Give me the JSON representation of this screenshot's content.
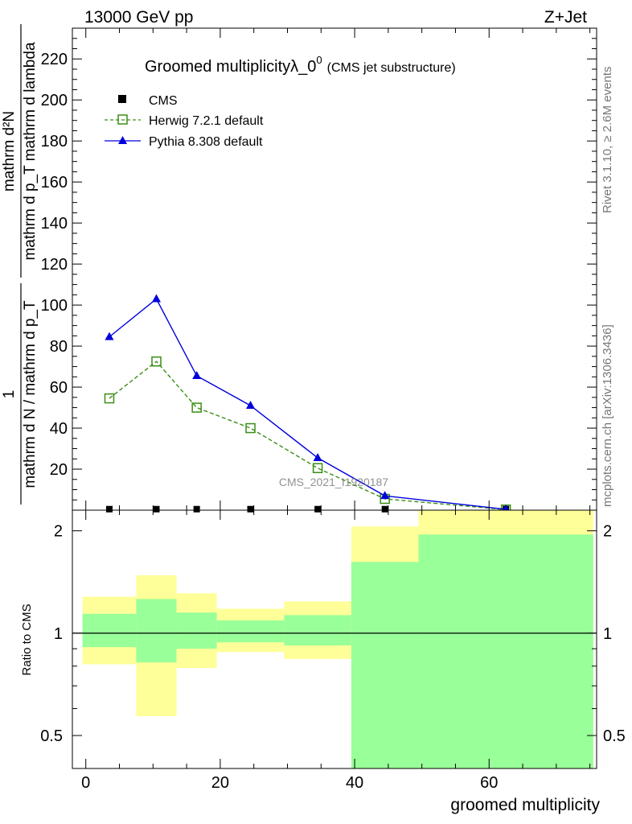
{
  "header": {
    "energy": "13000 GeV pp",
    "process": "Z+Jet"
  },
  "side_labels": {
    "rivet": "Rivet 3.1.10, ≥ 2.6M events",
    "mcplots": "mcplots.cern.ch [arXiv:1306.3436]"
  },
  "watermark": "CMS_2021_I1920187",
  "colors": {
    "cms": "#000000",
    "herwig": "#3a8e14",
    "pythia": "#0000dd",
    "band_outer": "#ffff99",
    "band_inner": "#99ff99"
  },
  "chart_data": [
    {
      "type": "line",
      "title": "Groomed multiplicityλ_0",
      "title_superscript": "0",
      "title_note": "(CMS jet substructure)",
      "ylabel_numerator": "mathrm d²N",
      "ylabel_denominator": "mathrm d p_T mathrm d lambda",
      "ylabel_prefix_num": "1",
      "ylabel_prefix_den": "mathrm d N / mathrm d p_T",
      "xlim": [
        -2,
        76
      ],
      "ylim": [
        0,
        235
      ],
      "yticks": [
        20,
        40,
        60,
        80,
        100,
        120,
        140,
        160,
        180,
        200,
        220
      ],
      "legend_position": "top-left",
      "series": [
        {
          "name": "CMS",
          "marker": "square-filled",
          "x": [
            3.5,
            10.5,
            16.5,
            24.5,
            34.5,
            44.5,
            62.5
          ],
          "y": [
            0.5,
            0.5,
            0.5,
            0.5,
            0.5,
            0.5,
            0.5
          ]
        },
        {
          "name": "Herwig 7.2.1 default",
          "marker": "square-open",
          "line": "dashed",
          "x": [
            3.5,
            10.5,
            16.5,
            24.5,
            34.5,
            44.5,
            62.5
          ],
          "y": [
            54.5,
            72.5,
            50,
            40,
            20.5,
            5.5,
            0.3
          ]
        },
        {
          "name": "Pythia 8.308 default",
          "marker": "triangle-filled",
          "line": "solid",
          "x": [
            3.5,
            10.5,
            16.5,
            24.5,
            34.5,
            44.5,
            62.5
          ],
          "y": [
            84.5,
            103,
            65.5,
            51,
            25.5,
            7,
            0.4
          ]
        }
      ]
    },
    {
      "type": "area",
      "ylabel": "Ratio to CMS",
      "xlabel": "groomed multiplicity",
      "scale": "log",
      "xlim": [
        -2,
        76
      ],
      "ylim": [
        0.4,
        2.3
      ],
      "xticks": [
        0,
        20,
        40,
        60
      ],
      "yticks": [
        0.5,
        1,
        2
      ],
      "reference_line": 1,
      "bins": [
        {
          "lo": -0.5,
          "hi": 7.5,
          "outer": [
            0.81,
            1.28
          ],
          "inner": [
            0.91,
            1.14
          ]
        },
        {
          "lo": 7.5,
          "hi": 13.5,
          "outer": [
            0.57,
            1.48
          ],
          "inner": [
            0.82,
            1.26
          ]
        },
        {
          "lo": 13.5,
          "hi": 19.5,
          "outer": [
            0.79,
            1.31
          ],
          "inner": [
            0.9,
            1.15
          ]
        },
        {
          "lo": 19.5,
          "hi": 29.5,
          "outer": [
            0.88,
            1.18
          ],
          "inner": [
            0.94,
            1.09
          ]
        },
        {
          "lo": 29.5,
          "hi": 39.5,
          "outer": [
            0.84,
            1.24
          ],
          "inner": [
            0.92,
            1.13
          ]
        },
        {
          "lo": 39.5,
          "hi": 49.5,
          "outer": [
            0.42,
            2.06
          ],
          "inner": [
            0.29,
            1.62
          ]
        },
        {
          "lo": 49.5,
          "hi": 75.5,
          "outer": [
            0.3,
            2.4
          ],
          "inner": [
            0.3,
            1.95
          ]
        }
      ]
    }
  ]
}
